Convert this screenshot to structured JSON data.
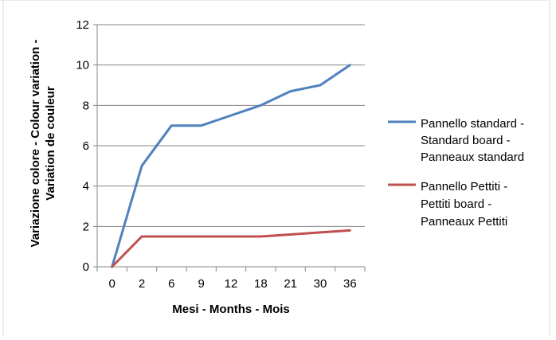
{
  "chart_data": {
    "type": "line",
    "categories": [
      "0",
      "2",
      "6",
      "9",
      "12",
      "18",
      "21",
      "30",
      "36"
    ],
    "xlabel": "Mesi - Months - Mois",
    "ylabel_lines": [
      "Variazione colore - Colour variation -",
      "Variation de couleur"
    ],
    "ylim": [
      0,
      12
    ],
    "yticks": [
      0,
      2,
      4,
      6,
      8,
      10,
      12
    ],
    "grid": "horizontal",
    "legend_position": "right",
    "series": [
      {
        "name_lines": [
          "Pannello standard -",
          "Standard board -",
          "Panneaux standard"
        ],
        "color": "#4f81bd",
        "values": [
          0,
          5,
          7,
          7,
          7.5,
          8,
          8.7,
          9,
          10
        ]
      },
      {
        "name_lines": [
          "Pannello Pettiti -",
          "Pettiti board -",
          "Panneaux Pettiti"
        ],
        "color": "#c0504d",
        "values": [
          0,
          1.5,
          1.5,
          1.5,
          1.5,
          1.5,
          1.6,
          1.7,
          1.8
        ]
      }
    ]
  }
}
